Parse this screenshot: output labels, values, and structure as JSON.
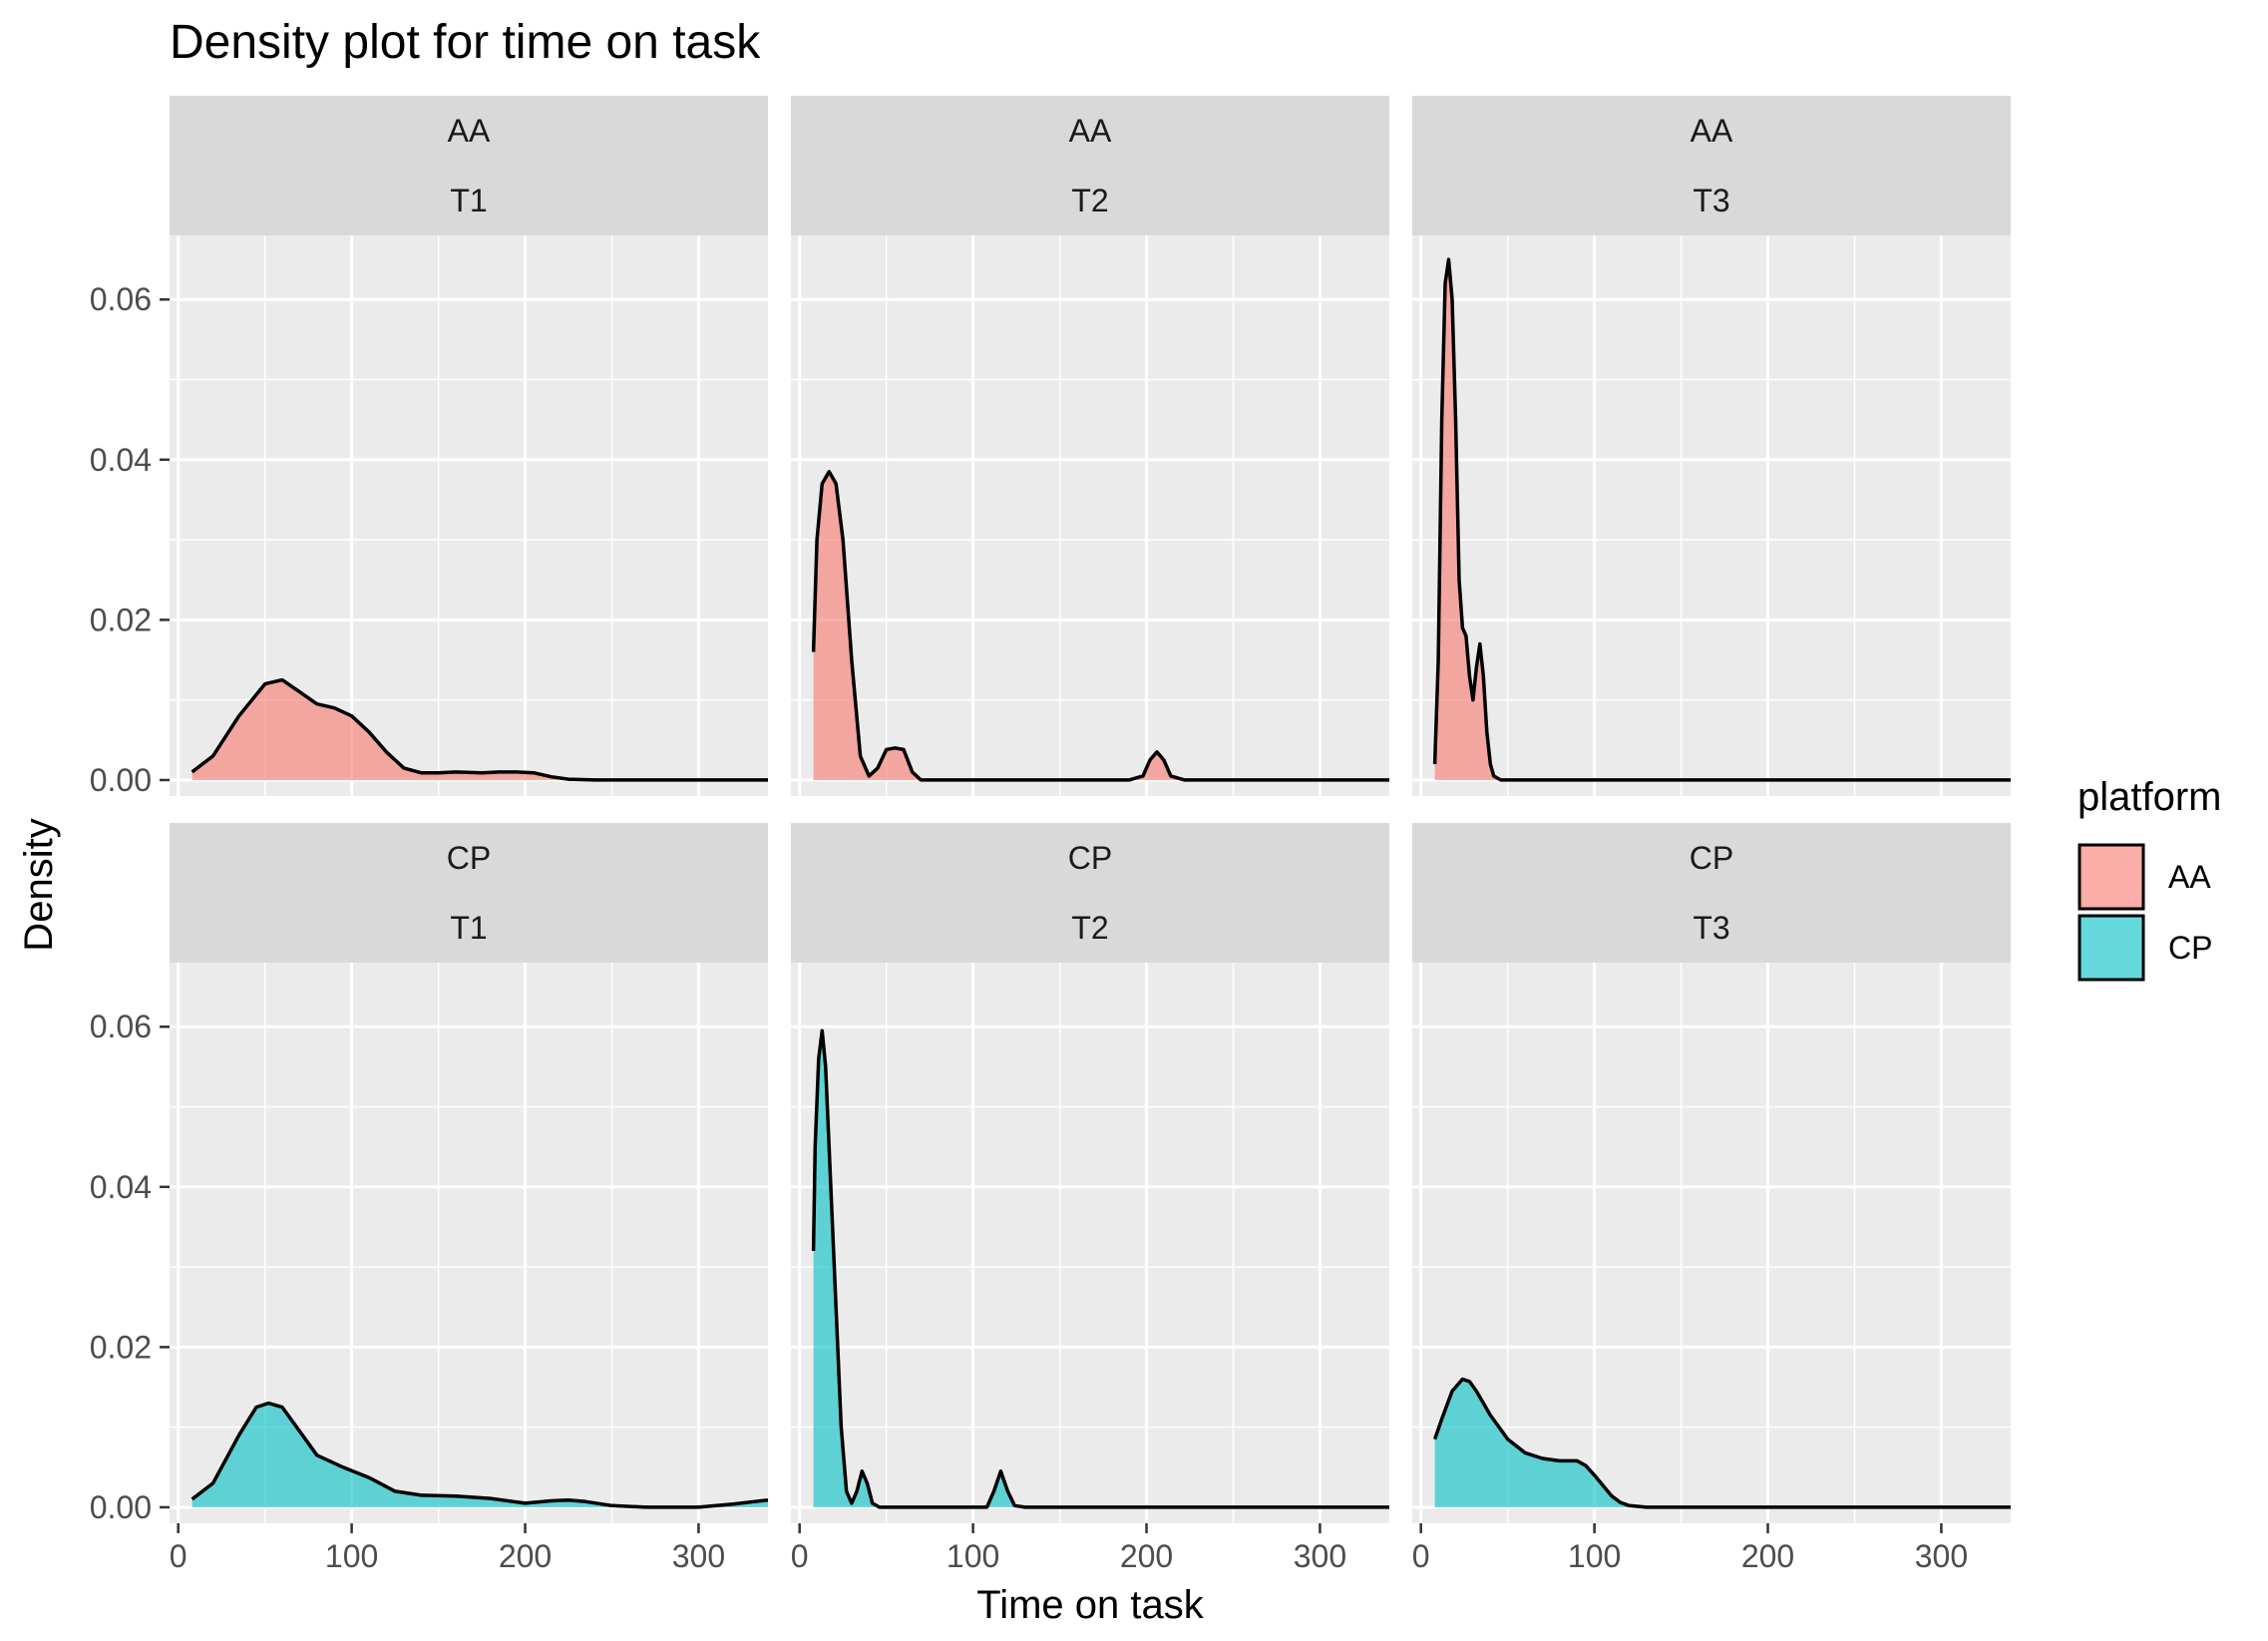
{
  "chart_data": {
    "type": "area",
    "title": "Density plot for time on task",
    "xlabel": "Time on task",
    "ylabel": "Density",
    "xlim": [
      -5,
      340
    ],
    "ylim": [
      -0.002,
      0.068
    ],
    "x_ticks": [
      0,
      100,
      200,
      300
    ],
    "y_ticks": [
      0.0,
      0.02,
      0.04,
      0.06
    ],
    "y_tick_labels": [
      "0.00",
      "0.02",
      "0.04",
      "0.06"
    ],
    "grid": true,
    "legend": {
      "title": "platform",
      "position": "right",
      "entries": [
        {
          "label": "AA",
          "color": "#F8766D"
        },
        {
          "label": "CP",
          "color": "#00BFC4"
        }
      ]
    },
    "panels": [
      {
        "row": 0,
        "col": 0,
        "strip": [
          "AA",
          "T1"
        ],
        "platform": "AA",
        "x": [
          8,
          20,
          35,
          50,
          60,
          70,
          80,
          90,
          100,
          110,
          120,
          130,
          140,
          150,
          160,
          175,
          185,
          195,
          205,
          215,
          225,
          240,
          270,
          300,
          340
        ],
        "y": [
          0.001,
          0.003,
          0.008,
          0.012,
          0.0125,
          0.011,
          0.0095,
          0.009,
          0.008,
          0.006,
          0.0035,
          0.0015,
          0.0009,
          0.0009,
          0.001,
          0.0009,
          0.001,
          0.001,
          0.0009,
          0.0004,
          0.0001,
          0,
          0,
          0,
          0
        ]
      },
      {
        "row": 0,
        "col": 1,
        "strip": [
          "AA",
          "T2"
        ],
        "platform": "AA",
        "x": [
          8,
          10,
          13,
          17,
          21,
          25,
          30,
          35,
          40,
          45,
          50,
          55,
          60,
          65,
          70,
          80,
          100,
          150,
          190,
          198,
          202,
          206,
          210,
          214,
          222,
          250,
          300,
          340
        ],
        "y": [
          0.016,
          0.03,
          0.037,
          0.0385,
          0.037,
          0.03,
          0.015,
          0.003,
          0.0005,
          0.0015,
          0.0038,
          0.004,
          0.0038,
          0.001,
          0,
          0,
          0,
          0,
          0,
          0.0005,
          0.0025,
          0.0035,
          0.0025,
          0.0005,
          0,
          0,
          0,
          0
        ]
      },
      {
        "row": 0,
        "col": 2,
        "strip": [
          "AA",
          "T3"
        ],
        "platform": "AA",
        "x": [
          8,
          10,
          12,
          14,
          16,
          18,
          20,
          22,
          24,
          26,
          28,
          30,
          32,
          34,
          36,
          38,
          40,
          42,
          46,
          50,
          100,
          200,
          300,
          340
        ],
        "y": [
          0.002,
          0.015,
          0.045,
          0.062,
          0.065,
          0.06,
          0.045,
          0.025,
          0.019,
          0.018,
          0.013,
          0.01,
          0.014,
          0.017,
          0.013,
          0.006,
          0.002,
          0.0005,
          0,
          0,
          0,
          0,
          0,
          0
        ]
      },
      {
        "row": 1,
        "col": 0,
        "strip": [
          "CP",
          "T1"
        ],
        "platform": "CP",
        "x": [
          8,
          20,
          35,
          45,
          52,
          60,
          70,
          80,
          95,
          110,
          125,
          140,
          160,
          180,
          200,
          215,
          225,
          235,
          250,
          270,
          300,
          320,
          340
        ],
        "y": [
          0.001,
          0.003,
          0.009,
          0.0125,
          0.013,
          0.0125,
          0.0095,
          0.0065,
          0.005,
          0.0037,
          0.002,
          0.0015,
          0.0014,
          0.0011,
          0.0005,
          0.0008,
          0.0009,
          0.0007,
          0.0002,
          0,
          0,
          0.0004,
          0.0009
        ]
      },
      {
        "row": 1,
        "col": 1,
        "strip": [
          "CP",
          "T2"
        ],
        "platform": "CP",
        "x": [
          8,
          9,
          11,
          13,
          15,
          18,
          21,
          24,
          27,
          30,
          33,
          36,
          39,
          42,
          46,
          50,
          80,
          108,
          112,
          116,
          120,
          124,
          130,
          200,
          300,
          340
        ],
        "y": [
          0.032,
          0.045,
          0.056,
          0.0595,
          0.055,
          0.04,
          0.025,
          0.01,
          0.002,
          0.0005,
          0.002,
          0.0045,
          0.003,
          0.0005,
          0,
          0,
          0,
          0,
          0.002,
          0.0045,
          0.002,
          0.0002,
          0,
          0,
          0,
          0
        ]
      },
      {
        "row": 1,
        "col": 2,
        "strip": [
          "CP",
          "T3"
        ],
        "platform": "CP",
        "x": [
          8,
          12,
          18,
          24,
          28,
          32,
          40,
          50,
          60,
          70,
          80,
          90,
          95,
          100,
          105,
          110,
          115,
          120,
          130,
          150,
          200,
          300,
          340
        ],
        "y": [
          0.0085,
          0.011,
          0.0145,
          0.016,
          0.0157,
          0.0145,
          0.0115,
          0.0085,
          0.0068,
          0.0061,
          0.0058,
          0.0058,
          0.0052,
          0.004,
          0.0027,
          0.0014,
          0.0006,
          0.0002,
          0,
          0,
          0,
          0,
          0
        ]
      }
    ]
  }
}
